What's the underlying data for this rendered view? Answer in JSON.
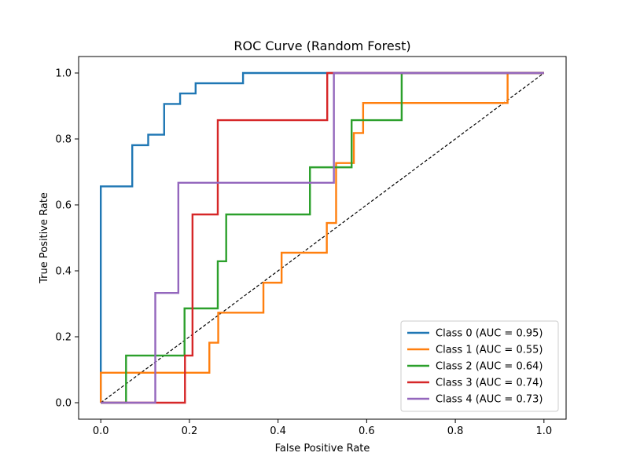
{
  "chart_data": {
    "type": "line",
    "title": "ROC Curve (Random Forest)",
    "xlabel": "False Positive Rate",
    "ylabel": "True Positive Rate",
    "xlim": [
      -0.05,
      1.05
    ],
    "ylim": [
      -0.05,
      1.05
    ],
    "xticks": [
      0.0,
      0.2,
      0.4,
      0.6,
      0.8,
      1.0
    ],
    "yticks": [
      0.0,
      0.2,
      0.4,
      0.6,
      0.8,
      1.0
    ],
    "grid": false,
    "legend_position": "lower-right",
    "diagonal": {
      "x": [
        0,
        1
      ],
      "y": [
        0,
        1
      ],
      "color": "#000000",
      "style": "dashed"
    },
    "series": [
      {
        "name": "Class 0 (AUC = 0.95)",
        "color": "#1f77b4",
        "x": [
          0,
          0,
          0,
          0.071,
          0.071,
          0.107,
          0.107,
          0.143,
          0.143,
          0.179,
          0.179,
          0.214,
          0.214,
          0.321,
          0.321,
          1.0
        ],
        "y": [
          0,
          0.656,
          0.656,
          0.656,
          0.781,
          0.781,
          0.813,
          0.813,
          0.906,
          0.906,
          0.938,
          0.938,
          0.969,
          0.969,
          1.0,
          1.0
        ]
      },
      {
        "name": "Class 1 (AUC = 0.55)",
        "color": "#ff7f0e",
        "x": [
          0,
          0,
          0.245,
          0.245,
          0.265,
          0.265,
          0.367,
          0.367,
          0.408,
          0.408,
          0.51,
          0.51,
          0.531,
          0.531,
          0.571,
          0.571,
          0.592,
          0.592,
          0.918,
          0.918,
          1.0
        ],
        "y": [
          0,
          0.091,
          0.091,
          0.182,
          0.182,
          0.273,
          0.273,
          0.364,
          0.364,
          0.455,
          0.455,
          0.545,
          0.545,
          0.727,
          0.727,
          0.818,
          0.818,
          0.909,
          0.909,
          1.0,
          1.0
        ]
      },
      {
        "name": "Class 2 (AUC = 0.64)",
        "color": "#2ca02c",
        "x": [
          0,
          0.057,
          0.057,
          0.189,
          0.189,
          0.264,
          0.264,
          0.283,
          0.283,
          0.472,
          0.472,
          0.566,
          0.566,
          0.679,
          0.679,
          1.0
        ],
        "y": [
          0,
          0,
          0.143,
          0.143,
          0.286,
          0.286,
          0.429,
          0.429,
          0.571,
          0.571,
          0.714,
          0.714,
          0.857,
          0.857,
          1.0,
          1.0
        ]
      },
      {
        "name": "Class 3 (AUC = 0.74)",
        "color": "#d62728",
        "x": [
          0,
          0.19,
          0.19,
          0.207,
          0.207,
          0.264,
          0.264,
          0.511,
          0.511,
          1.0
        ],
        "y": [
          0,
          0,
          0.143,
          0.143,
          0.571,
          0.571,
          0.857,
          0.857,
          1.0,
          1.0
        ]
      },
      {
        "name": "Class 4 (AUC = 0.73)",
        "color": "#9467bd",
        "x": [
          0,
          0.123,
          0.123,
          0.175,
          0.175,
          0.526,
          0.526,
          1.0
        ],
        "y": [
          0,
          0,
          0.333,
          0.333,
          0.667,
          0.667,
          1.0,
          1.0
        ]
      }
    ]
  }
}
